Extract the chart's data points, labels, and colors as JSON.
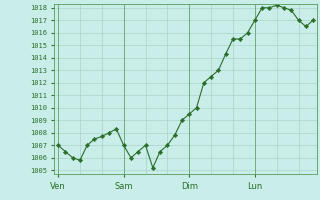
{
  "y_values": [
    1007,
    1006.5,
    1006,
    1005.8,
    1007,
    1007.5,
    1007.7,
    1008,
    1008.3,
    1007,
    1006,
    1006.5,
    1007,
    1005.2,
    1006.5,
    1007,
    1007.8,
    1009,
    1009.5,
    1010,
    1012,
    1012.5,
    1013,
    1014.3,
    1015.5,
    1015.5,
    1016,
    1017,
    1018,
    1018,
    1018.2,
    1018,
    1017.8,
    1017,
    1016.5,
    1017
  ],
  "x_ticks_pos": [
    0,
    9,
    18,
    27
  ],
  "x_tick_labels": [
    "Ven",
    "Sam",
    "Dim",
    "Lun"
  ],
  "y_min": 1005,
  "y_max": 1018,
  "y_tick_step": 1,
  "background_color": "#c9ede8",
  "grid_color": "#aad4cc",
  "line_color": "#2a6e2a",
  "marker_color": "#2a6e2a",
  "tick_label_color": "#2a6e2a",
  "spine_color": "#5a9a5a",
  "figsize": [
    3.2,
    2.0
  ],
  "dpi": 100
}
